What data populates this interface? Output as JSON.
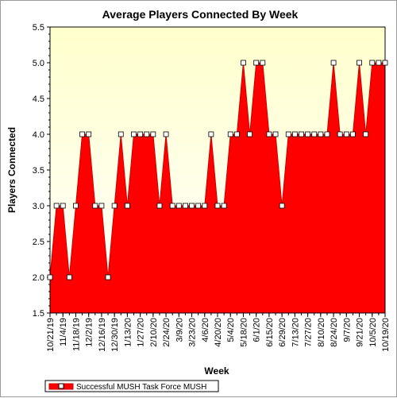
{
  "chart_data": {
    "type": "area",
    "title": "Average Players Connected By Week",
    "xlabel": "Week",
    "ylabel": "Players Connected",
    "ylim": [
      1.5,
      5.5
    ],
    "yticks": [
      "1.5",
      "2.0",
      "2.5",
      "3.0",
      "3.5",
      "4.0",
      "4.5",
      "5.0",
      "5.5"
    ],
    "grid": false,
    "legend_position": "bottom-left",
    "colors": {
      "plot_background_top": "#ffffcc",
      "plot_background_bottom": "#ffffff",
      "fill": "#ff0000",
      "line": "#cc0000",
      "marker": "#ffffff"
    },
    "x": [
      "10/21/19",
      "10/28/19",
      "11/4/19",
      "11/11/19",
      "11/18/19",
      "11/25/19",
      "12/2/19",
      "12/9/19",
      "12/16/19",
      "12/23/19",
      "12/30/19",
      "1/6/20",
      "1/13/20",
      "1/20/20",
      "1/27/20",
      "2/3/20",
      "2/10/20",
      "2/17/20",
      "2/24/20",
      "3/2/20",
      "3/9/20",
      "3/16/20",
      "3/23/20",
      "3/30/20",
      "4/6/20",
      "4/13/20",
      "4/20/20",
      "4/27/20",
      "5/4/20",
      "5/11/20",
      "5/18/20",
      "5/25/20",
      "6/1/20",
      "6/8/20",
      "6/15/20",
      "6/22/20",
      "6/29/20",
      "7/6/20",
      "7/13/20",
      "7/20/20",
      "7/27/20",
      "8/3/20",
      "8/10/20",
      "8/17/20",
      "8/24/20",
      "8/31/20",
      "9/7/20",
      "9/14/20",
      "9/21/20",
      "9/28/20",
      "10/5/20",
      "10/12/20",
      "10/19/20"
    ],
    "x_tick_labels": [
      "10/21/19",
      "11/4/19",
      "11/18/19",
      "12/2/19",
      "12/16/19",
      "12/30/19",
      "1/13/20",
      "1/27/20",
      "2/10/20",
      "2/24/20",
      "3/9/20",
      "3/23/20",
      "4/6/20",
      "4/20/20",
      "5/4/20",
      "5/18/20",
      "6/1/20",
      "6/15/20",
      "6/29/20",
      "7/13/20",
      "7/27/20",
      "8/10/20",
      "8/24/20",
      "9/7/20",
      "9/21/20",
      "10/5/20",
      "10/19/20"
    ],
    "series": [
      {
        "name": "Successful MUSH Task Force MUSH",
        "values": [
          2,
          3,
          3,
          2,
          3,
          4,
          4,
          3,
          3,
          2,
          3,
          4,
          3,
          4,
          4,
          4,
          4,
          3,
          4,
          3,
          3,
          3,
          3,
          3,
          3,
          4,
          3,
          3,
          4,
          4,
          5,
          4,
          5,
          5,
          4,
          4,
          3,
          4,
          4,
          4,
          4,
          4,
          4,
          4,
          5,
          4,
          4,
          4,
          5,
          4,
          5,
          5,
          5
        ]
      }
    ]
  }
}
